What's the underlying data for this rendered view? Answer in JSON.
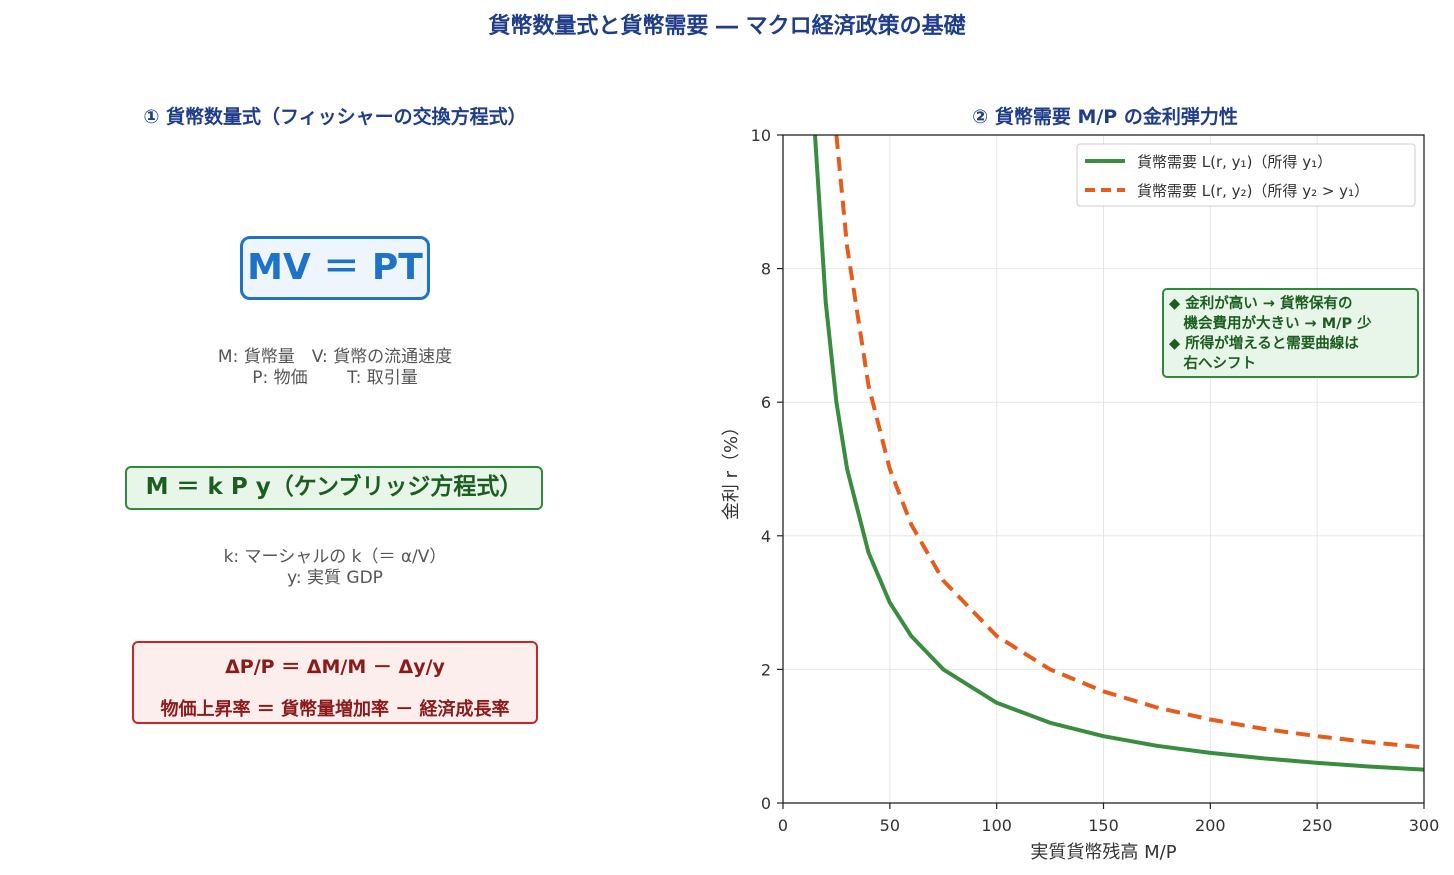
{
  "title": "貨幣数量式と貨幣需要 ― マクロ経済政策の基礎",
  "left_panel": {
    "title": "① 貨幣数量式（フィッシャーの交換方程式）",
    "main_equation": "MV ＝ PT",
    "main_equation_desc": "M: 貨幣量　V: 貨幣の流通速度\nP: 物価　　 T: 取引量",
    "cambridge_equation": "M ＝ k P y（ケンブリッジ方程式）",
    "cambridge_desc": "k: マーシャルの k（＝ α/V）\ny: 実質 GDP",
    "growth_equation": "ΔP/P ＝ ΔM/M － Δy/y",
    "growth_text": "物価上昇率 ＝ 貨幣量増加率 － 経済成長率"
  },
  "chart_data": {
    "type": "line",
    "title": "② 貨幣需要 M/P の金利弾力性",
    "xlabel": "実質貨幣残高 M/P",
    "ylabel": "金利 r（%）",
    "xlim": [
      0,
      300
    ],
    "ylim": [
      0,
      10
    ],
    "xticks": [
      0,
      50,
      100,
      150,
      200,
      250,
      300
    ],
    "yticks": [
      0,
      2,
      4,
      6,
      8,
      10
    ],
    "grid": true,
    "legend_position": "top-right",
    "series": [
      {
        "name": "貨幣需要 L(r, y₁)（所得 y₁）",
        "color": "#3a8c3f",
        "style": "solid",
        "x": [
          15,
          20,
          25,
          30,
          40,
          50,
          60,
          75,
          100,
          125,
          150,
          175,
          200,
          225,
          250,
          275,
          300
        ],
        "y": [
          10,
          7.5,
          6.0,
          5.0,
          3.75,
          3.0,
          2.5,
          2.0,
          1.5,
          1.2,
          1.0,
          0.857,
          0.75,
          0.667,
          0.6,
          0.545,
          0.5
        ]
      },
      {
        "name": "貨幣需要 L(r, y₂)（所得 y₂ > y₁）",
        "color": "#e65c1a",
        "style": "dashed",
        "x": [
          25,
          30,
          40,
          50,
          60,
          75,
          100,
          125,
          150,
          175,
          200,
          225,
          250,
          275,
          300
        ],
        "y": [
          10,
          8.33,
          6.25,
          5.0,
          4.17,
          3.33,
          2.5,
          2.0,
          1.67,
          1.43,
          1.25,
          1.11,
          1.0,
          0.909,
          0.833
        ]
      }
    ],
    "annotation": [
      "◆ 金利が高い → 貨幣保有の",
      "　機会費用が大きい → M/P 少",
      "◆ 所得が増えると需要曲線は",
      "　右へシフト"
    ],
    "annotation_colors": {
      "border": "#2e8b3a",
      "background": "#e8f5e9",
      "text": "#1b5e20"
    }
  }
}
